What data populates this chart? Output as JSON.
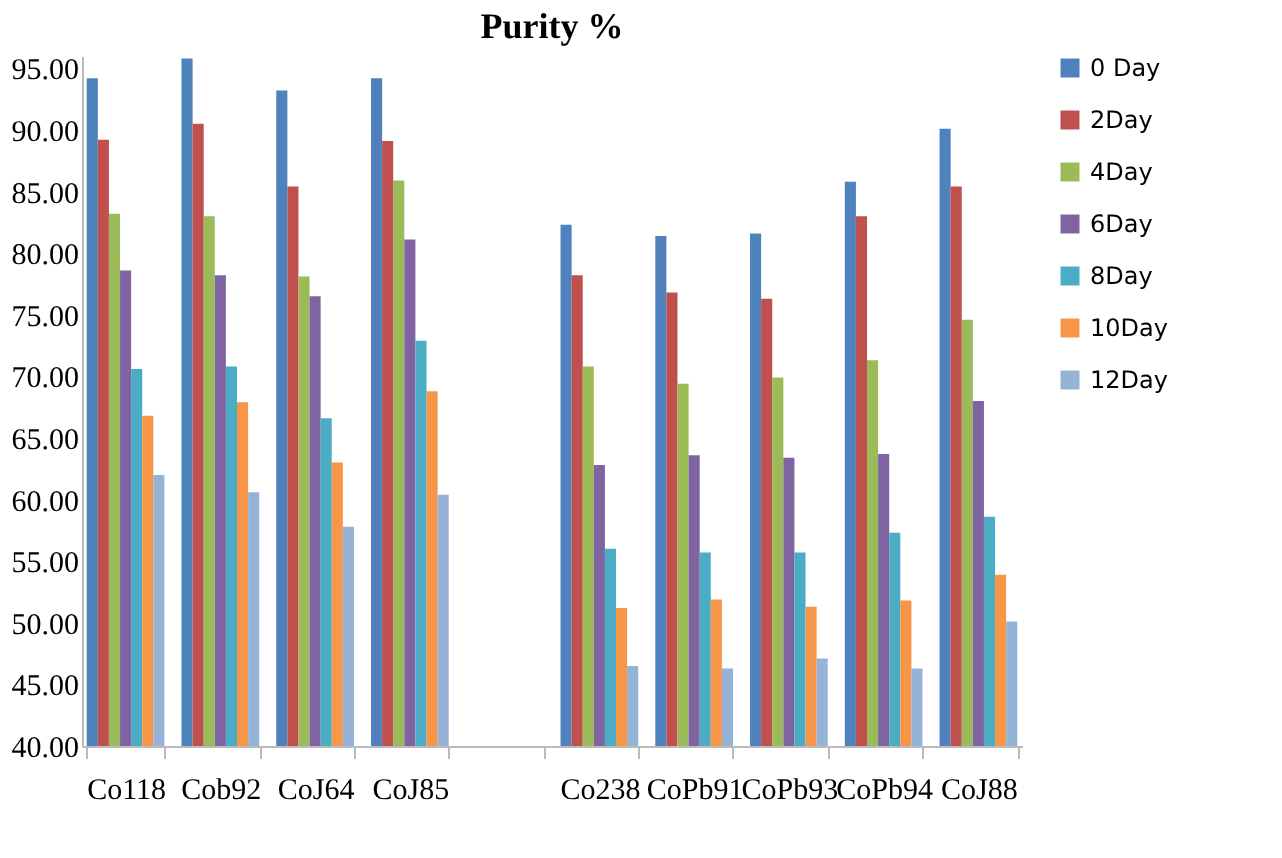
{
  "chart_data": {
    "type": "bar",
    "title": "Purity %",
    "categories": [
      "Co118",
      "Cob92",
      "CoJ64",
      "CoJ85",
      null,
      "Co238",
      "CoPb91",
      "CoPb93",
      "CoPb94",
      "CoJ88"
    ],
    "series": [
      {
        "name": "0 Day",
        "color": "#4f81bd",
        "values": [
          94.2,
          95.8,
          93.2,
          94.2,
          null,
          82.3,
          81.4,
          81.6,
          85.8,
          90.1
        ]
      },
      {
        "name": "2Day",
        "color": "#c0504d",
        "values": [
          89.2,
          90.5,
          85.4,
          89.1,
          null,
          78.2,
          76.8,
          76.3,
          83.0,
          85.4
        ]
      },
      {
        "name": "4Day",
        "color": "#9bbb59",
        "values": [
          83.2,
          83.0,
          78.1,
          85.9,
          null,
          70.8,
          69.4,
          69.9,
          71.3,
          74.6
        ]
      },
      {
        "name": "6Day",
        "color": "#8064a2",
        "values": [
          78.6,
          78.2,
          76.5,
          81.1,
          null,
          62.8,
          63.6,
          63.4,
          63.7,
          68.0
        ]
      },
      {
        "name": "8Day",
        "color": "#4bacc6",
        "values": [
          70.6,
          70.8,
          66.6,
          72.9,
          null,
          56.0,
          55.7,
          55.7,
          57.3,
          58.6
        ]
      },
      {
        "name": "10Day",
        "color": "#f79646",
        "values": [
          66.8,
          67.9,
          63.0,
          68.8,
          null,
          51.2,
          51.9,
          51.3,
          51.8,
          53.9
        ]
      },
      {
        "name": "12Day",
        "color": "#95b3d7",
        "values": [
          62.0,
          60.6,
          57.8,
          60.4,
          null,
          46.5,
          46.3,
          47.1,
          46.3,
          50.1
        ]
      }
    ],
    "ylim": [
      40,
      96
    ],
    "yticks": [
      {
        "value": 40,
        "label": "40.00"
      },
      {
        "value": 45,
        "label": "45.00"
      },
      {
        "value": 50,
        "label": "50.00"
      },
      {
        "value": 55,
        "label": "55.00"
      },
      {
        "value": 60,
        "label": "60.00"
      },
      {
        "value": 65,
        "label": "65.00"
      },
      {
        "value": 70,
        "label": "70.00"
      },
      {
        "value": 75,
        "label": "75.00"
      },
      {
        "value": 80,
        "label": "80.00"
      },
      {
        "value": 85,
        "label": "85.00"
      },
      {
        "value": 90,
        "label": "90.00"
      },
      {
        "value": 95,
        "label": "95.00"
      }
    ],
    "grid": false,
    "legend": "right"
  }
}
